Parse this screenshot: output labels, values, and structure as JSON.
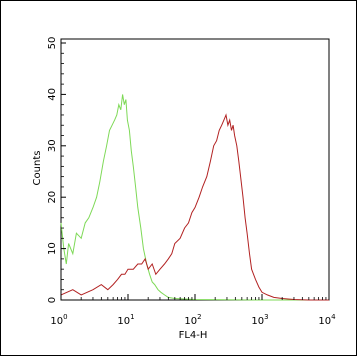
{
  "chart_data": {
    "type": "line",
    "xlabel": "FL4-H",
    "ylabel": "Counts",
    "x_scale": "log",
    "xlim": [
      1,
      10000
    ],
    "ylim": [
      0,
      50
    ],
    "x_tick_labels": [
      {
        "base": "10",
        "exp": "0",
        "value": 1
      },
      {
        "base": "10",
        "exp": "1",
        "value": 10
      },
      {
        "base": "10",
        "exp": "2",
        "value": 100
      },
      {
        "base": "10",
        "exp": "3",
        "value": 1000
      },
      {
        "base": "10",
        "exp": "4",
        "value": 10000
      }
    ],
    "y_ticks": [
      0,
      10,
      20,
      30,
      40,
      50
    ],
    "grid": false,
    "series": [
      {
        "color": "#7ed957",
        "x": [
          1,
          1.1,
          1.2,
          1.3,
          1.5,
          1.7,
          2,
          2.3,
          2.6,
          3,
          3.4,
          3.8,
          4.3,
          4.8,
          5.3,
          5.8,
          6.3,
          6.8,
          7.3,
          7.8,
          8.3,
          8.8,
          9.3,
          9.8,
          10.5,
          11.2,
          12,
          13,
          14,
          15.5,
          17,
          19,
          21,
          23,
          25,
          28,
          31,
          35,
          40,
          50,
          70,
          100,
          1000,
          10000
        ],
        "y": [
          15,
          10,
          7,
          11,
          9,
          13,
          12,
          15,
          16,
          18,
          20,
          23,
          27,
          30,
          33,
          34,
          35,
          36,
          38,
          37,
          40,
          38,
          39,
          35,
          33,
          29,
          26,
          22,
          18,
          14,
          10,
          7,
          5,
          3.5,
          3,
          2,
          1.5,
          1,
          0.5,
          0.3,
          0.2,
          0.1,
          0,
          0
        ]
      },
      {
        "color": "#b22222",
        "x": [
          1,
          1.5,
          2,
          3,
          4,
          5,
          6,
          7,
          8,
          9,
          10,
          12,
          14,
          16,
          18,
          20,
          23,
          26,
          30,
          35,
          40,
          45,
          50,
          60,
          70,
          80,
          90,
          100,
          115,
          130,
          150,
          170,
          190,
          210,
          230,
          250,
          270,
          290,
          310,
          330,
          350,
          370,
          390,
          420,
          450,
          480,
          520,
          560,
          600,
          650,
          700,
          800,
          900,
          1000,
          1200,
          1500,
          2000,
          3000,
          5000,
          10000
        ],
        "y": [
          1,
          2,
          1,
          2,
          3,
          2,
          3,
          4,
          5,
          5,
          6,
          6,
          7,
          7,
          8,
          6,
          7,
          5,
          6,
          7,
          8,
          9,
          11,
          12,
          14,
          15,
          17,
          18,
          20,
          22,
          24,
          27,
          30,
          31,
          33,
          34,
          35,
          36,
          34,
          35,
          33,
          34,
          32,
          30,
          27,
          24,
          20,
          16,
          13,
          9,
          6,
          4,
          2.5,
          1.5,
          1,
          0.5,
          0.3,
          0.1,
          0,
          0
        ]
      }
    ]
  }
}
